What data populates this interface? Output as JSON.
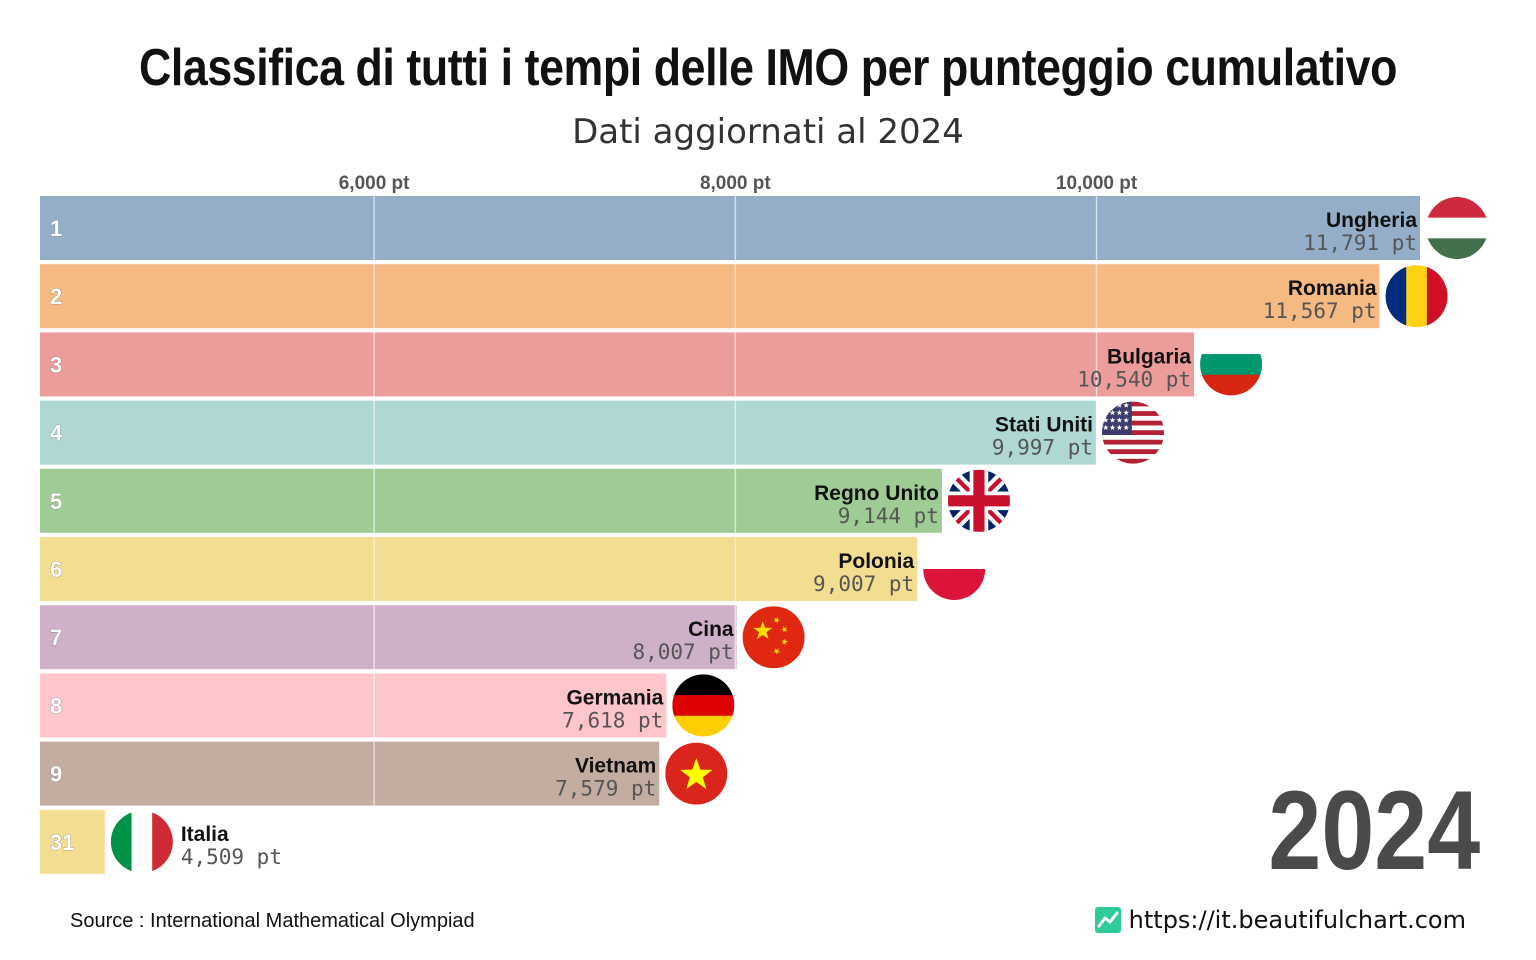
{
  "title": "Classifica di tutti i tempi delle IMO per punteggio cumulativo",
  "subtitle": "Dati aggiornati al 2024",
  "year": "2024",
  "source": "Source : International Mathematical Olympiad",
  "site": "https://it.beautifulchart.com",
  "site_icon": "chart-line-icon",
  "chart_data": {
    "type": "bar",
    "orientation": "horizontal",
    "axis_min": 4150,
    "axis_max": 12400,
    "ticks": [
      6000,
      8000,
      10000
    ],
    "tick_labels": [
      "6,000 pt",
      "8,000 pt",
      "10,000 pt"
    ],
    "unit": "pt",
    "bars": [
      {
        "rank": "1",
        "country": "Ungheria",
        "value": 11791,
        "label": "11,791 pt",
        "color": "#94aec9",
        "flag": "hungary"
      },
      {
        "rank": "2",
        "country": "Romania",
        "value": 11567,
        "label": "11,567 pt",
        "color": "#f5ba82",
        "flag": "romania"
      },
      {
        "rank": "3",
        "country": "Bulgaria",
        "value": 10540,
        "label": "10,540 pt",
        "color": "#ed9c9c",
        "flag": "bulgaria"
      },
      {
        "rank": "4",
        "country": "Stati Uniti",
        "value": 9997,
        "label": "9,997 pt",
        "color": "#afd7d4",
        "flag": "usa"
      },
      {
        "rank": "5",
        "country": "Regno Unito",
        "value": 9144,
        "label": "9,144 pt",
        "color": "#9fcb95",
        "flag": "uk"
      },
      {
        "rank": "6",
        "country": "Polonia",
        "value": 9007,
        "label": "9,007 pt",
        "color": "#f2dd91",
        "flag": "poland"
      },
      {
        "rank": "7",
        "country": "Cina",
        "value": 8007,
        "label": "8,007 pt",
        "color": "#cfb0c9",
        "flag": "china"
      },
      {
        "rank": "8",
        "country": "Germania",
        "value": 7618,
        "label": "7,618 pt",
        "color": "#fec5cb",
        "flag": "germany"
      },
      {
        "rank": "9",
        "country": "Vietnam",
        "value": 7579,
        "label": "7,579 pt",
        "color": "#c4ada0",
        "flag": "vietnam"
      },
      {
        "rank": "31",
        "country": "Italia",
        "value": 4509,
        "label": "4,509 pt",
        "color": "#f2dd91",
        "flag": "italy"
      }
    ]
  }
}
